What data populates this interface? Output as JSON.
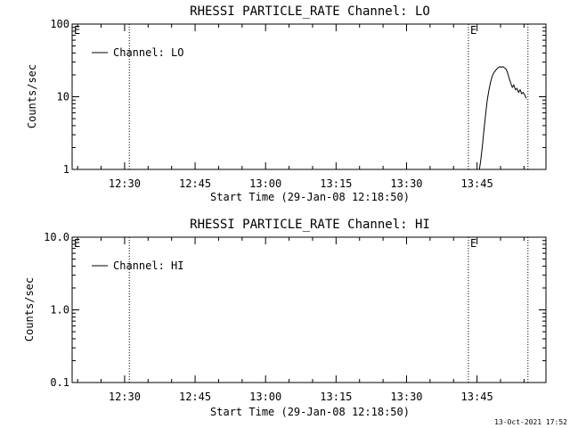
{
  "footer": {
    "timestamp": "13-Oct-2021 17:52"
  },
  "colors": {
    "background": "#ffffff",
    "axes": "#000000",
    "line": "#000000",
    "marker_line": "#000000"
  },
  "chart_data": [
    {
      "type": "line",
      "title": "RHESSI PARTICLE_RATE Channel: LO",
      "xlabel": "Start Time (29-Jan-08 12:18:50)",
      "ylabel": "Counts/sec",
      "y_scale": "log",
      "ylim": [
        1,
        100
      ],
      "y_ticks": [
        1,
        10,
        100
      ],
      "y_tick_labels": [
        "1",
        "10",
        "100"
      ],
      "xlim": [
        "12:18:50",
        "13:59:40"
      ],
      "x_ticks": [
        "12:30",
        "12:45",
        "13:00",
        "13:15",
        "13:30",
        "13:45"
      ],
      "x_tick_labels": [
        "12:30",
        "12:45",
        "13:00",
        "13:15",
        "13:30",
        "13:45"
      ],
      "legend": {
        "label": "Channel: LO",
        "position": "top-left"
      },
      "markers": [
        {
          "time": "12:31:00",
          "label": ""
        },
        {
          "time": "13:43:10",
          "label": "E"
        },
        {
          "time": "13:55:50",
          "label": ""
        }
      ],
      "edge_label": "E",
      "series": [
        {
          "name": "Channel: LO",
          "x": [
            "13:45:30",
            "13:45:50",
            "13:46:10",
            "13:46:30",
            "13:46:50",
            "13:47:10",
            "13:47:30",
            "13:47:50",
            "13:48:10",
            "13:48:30",
            "13:48:50",
            "13:49:10",
            "13:49:30",
            "13:49:50",
            "13:50:10",
            "13:50:30",
            "13:50:50",
            "13:51:10",
            "13:51:30",
            "13:51:50",
            "13:52:10",
            "13:52:30",
            "13:52:50",
            "13:53:10",
            "13:53:30",
            "13:53:50",
            "13:54:10",
            "13:54:30",
            "13:54:50",
            "13:55:10",
            "13:55:30"
          ],
          "values": [
            1.0,
            1.4,
            2.2,
            3.6,
            5.8,
            8.8,
            12.0,
            15.5,
            18.5,
            21.0,
            22.5,
            24.0,
            25.0,
            26.0,
            25.5,
            26.0,
            25.0,
            24.0,
            21.5,
            18.0,
            15.5,
            13.5,
            14.5,
            12.5,
            13.0,
            11.5,
            12.5,
            11.0,
            11.5,
            10.5,
            9.5
          ]
        }
      ]
    },
    {
      "type": "line",
      "title": "RHESSI PARTICLE_RATE Channel: HI",
      "xlabel": "Start Time (29-Jan-08 12:18:50)",
      "ylabel": "Counts/sec",
      "y_scale": "log",
      "ylim": [
        0.1,
        10
      ],
      "y_ticks": [
        0.1,
        1,
        10
      ],
      "y_tick_labels": [
        "0.1",
        "1.0",
        "10.0"
      ],
      "xlim": [
        "12:18:50",
        "13:59:40"
      ],
      "x_ticks": [
        "12:30",
        "12:45",
        "13:00",
        "13:15",
        "13:30",
        "13:45"
      ],
      "x_tick_labels": [
        "12:30",
        "12:45",
        "13:00",
        "13:15",
        "13:30",
        "13:45"
      ],
      "legend": {
        "label": "Channel: HI",
        "position": "top-left"
      },
      "markers": [
        {
          "time": "12:31:00",
          "label": ""
        },
        {
          "time": "13:43:10",
          "label": "E"
        },
        {
          "time": "13:55:50",
          "label": ""
        }
      ],
      "edge_label": "E",
      "series": [
        {
          "name": "Channel: HI",
          "x": [],
          "values": []
        }
      ]
    }
  ]
}
